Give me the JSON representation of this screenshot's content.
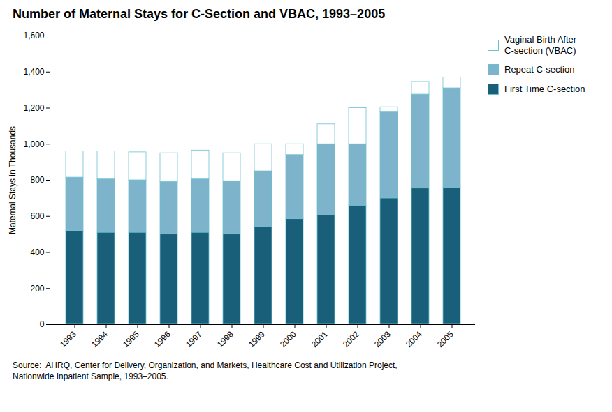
{
  "chart_data": {
    "type": "bar",
    "stacked": true,
    "title": "Number of Maternal Stays for C-Section and VBAC, 1993–2005",
    "ylabel": "Maternal Stays in Thousands",
    "annotations": [
      "Source:  AHRQ, Center for Delivery, Organization, and Markets, Healthcare Cost and Utilization Project,\nNationwide Inpatient Sample, 1993–2005."
    ],
    "categories": [
      "1993",
      "1994",
      "1995",
      "1996",
      "1997",
      "1998",
      "1999",
      "2000",
      "2001",
      "2002",
      "2003",
      "2004",
      "2005"
    ],
    "series": [
      {
        "name": "First Time C-section",
        "color": "#1a5f7a",
        "values": [
          520,
          510,
          510,
          500,
          510,
          500,
          540,
          585,
          605,
          660,
          700,
          755,
          760
        ]
      },
      {
        "name": "Repeat C-section",
        "color": "#7db4cc",
        "values": [
          295,
          295,
          290,
          290,
          295,
          295,
          310,
          355,
          395,
          340,
          480,
          520,
          550
        ]
      },
      {
        "name": "Vaginal Birth After\nC-section (VBAC)",
        "color": "#ffffff",
        "values": [
          145,
          155,
          155,
          160,
          160,
          155,
          150,
          60,
          110,
          200,
          25,
          70,
          60
        ]
      }
    ],
    "ylim": [
      0,
      1600
    ],
    "yticks": [
      0,
      200,
      400,
      600,
      800,
      {
        "value": 1000,
        "label": "1,000"
      },
      {
        "value": 1200,
        "label": "1,200"
      },
      {
        "value": 1400,
        "label": "1,400"
      },
      {
        "value": 1600,
        "label": "1,600"
      }
    ],
    "grid": false,
    "legend": "right"
  }
}
